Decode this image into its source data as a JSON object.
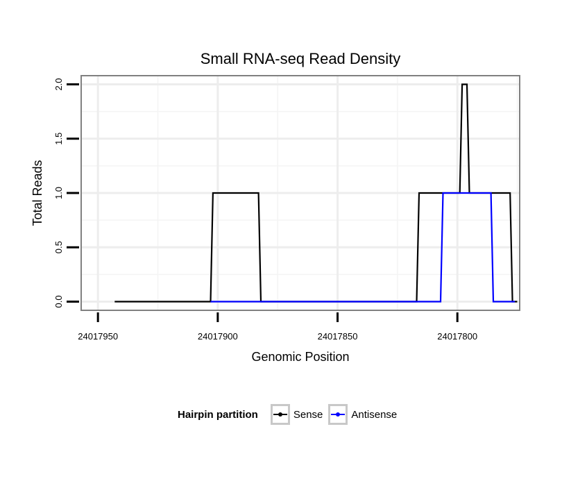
{
  "chart_data": {
    "type": "line",
    "title": "Small RNA-seq Read Density",
    "xlabel": "Genomic Position",
    "ylabel": "Total Reads",
    "x_reversed": true,
    "xlim": [
      24017957,
      24017774
    ],
    "ylim": [
      -0.08,
      2.08
    ],
    "x_ticks": [
      24017950,
      24017900,
      24017850,
      24017800
    ],
    "x_tick_labels": [
      "24017950",
      "24017900",
      "24017850",
      "24017800"
    ],
    "y_ticks": [
      0.0,
      0.5,
      1.0,
      1.5,
      2.0
    ],
    "y_tick_labels": [
      "0.0",
      "0.5",
      "1.0",
      "1.5",
      "2.0"
    ],
    "grid": true,
    "legend_position": "bottom",
    "legend_title": "Hairpin partition",
    "series": [
      {
        "name": "Sense",
        "color": "#000000",
        "points": [
          [
            24017943,
            0
          ],
          [
            24017903,
            0
          ],
          [
            24017902,
            1
          ],
          [
            24017883,
            1
          ],
          [
            24017882,
            0
          ],
          [
            24017817,
            0
          ],
          [
            24017816,
            1
          ],
          [
            24017799,
            1
          ],
          [
            24017798,
            2
          ],
          [
            24017796,
            2
          ],
          [
            24017795,
            1
          ],
          [
            24017778,
            1
          ],
          [
            24017777,
            0
          ],
          [
            24017775,
            0
          ]
        ]
      },
      {
        "name": "Antisense",
        "color": "#0000ff",
        "points": [
          [
            24017903,
            0
          ],
          [
            24017882,
            0
          ],
          [
            24017817,
            0
          ],
          [
            24017807,
            0
          ],
          [
            24017806,
            1
          ],
          [
            24017786,
            1
          ],
          [
            24017785,
            0
          ],
          [
            24017776,
            0
          ]
        ]
      }
    ]
  }
}
